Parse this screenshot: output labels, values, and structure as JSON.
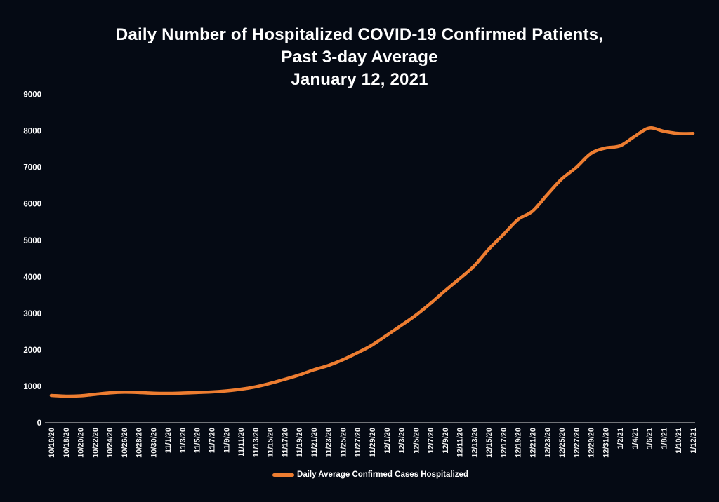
{
  "title": {
    "line1": "Daily Number of Hospitalized COVID-19 Confirmed Patients,",
    "line2": "Past 3-day Average",
    "line3": "January 12, 2021"
  },
  "legend": {
    "label": "Daily Average Confirmed Cases Hospitalized"
  },
  "colors": {
    "background": "#050a14",
    "text": "#ffffff",
    "axis_line": "#dedede",
    "series_orange": "#ed7d31"
  },
  "chart_data": {
    "type": "line",
    "title": "Daily Number of Hospitalized COVID-19 Confirmed Patients, Past 3-day Average, January 12, 2021",
    "xlabel": "",
    "ylabel": "",
    "ylim": [
      0,
      9000
    ],
    "yticks": [
      0,
      1000,
      2000,
      3000,
      4000,
      5000,
      6000,
      7000,
      8000,
      9000
    ],
    "grid": false,
    "legend_position": "bottom",
    "x": [
      "10/16/20",
      "10/18/20",
      "10/20/20",
      "10/22/20",
      "10/24/20",
      "10/26/20",
      "10/28/20",
      "10/30/20",
      "11/1/20",
      "11/3/20",
      "11/5/20",
      "11/7/20",
      "11/9/20",
      "11/11/20",
      "11/13/20",
      "11/15/20",
      "11/17/20",
      "11/19/20",
      "11/21/20",
      "11/23/20",
      "11/25/20",
      "11/27/20",
      "11/29/20",
      "12/1/20",
      "12/3/20",
      "12/5/20",
      "12/7/20",
      "12/9/20",
      "12/11/20",
      "12/13/20",
      "12/15/20",
      "12/17/20",
      "12/19/20",
      "12/21/20",
      "12/23/20",
      "12/25/20",
      "12/27/20",
      "12/29/20",
      "12/31/20",
      "1/2/21",
      "1/4/21",
      "1/6/21",
      "1/8/21",
      "1/10/21",
      "1/12/21"
    ],
    "series": [
      {
        "name": "Daily Average Confirmed Cases Hospitalized",
        "color": "#ed7d31",
        "values": [
          750,
          730,
          740,
          780,
          820,
          840,
          830,
          810,
          805,
          815,
          830,
          845,
          875,
          920,
          985,
          1080,
          1190,
          1310,
          1450,
          1570,
          1730,
          1920,
          2130,
          2400,
          2670,
          2950,
          3270,
          3620,
          3950,
          4300,
          4760,
          5160,
          5570,
          5800,
          6250,
          6680,
          7000,
          7380,
          7530,
          7590,
          7850,
          8080,
          7990,
          7930,
          7930
        ]
      }
    ]
  }
}
